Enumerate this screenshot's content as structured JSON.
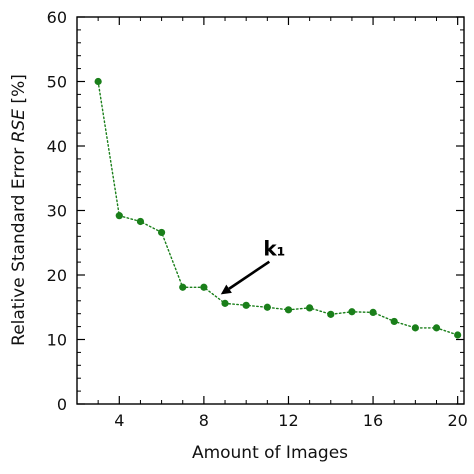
{
  "chart_data": {
    "type": "line",
    "xlabel": "Amount of Images",
    "ylabel_prefix": "Relative Standard Error ",
    "ylabel_italic": "RSE",
    "ylabel_suffix": " [%]",
    "xlim": [
      2,
      20.3
    ],
    "ylim": [
      0,
      60
    ],
    "xticks": [
      4,
      8,
      12,
      16,
      20
    ],
    "yticks": [
      0,
      10,
      20,
      30,
      40,
      50,
      60
    ],
    "x_minor_step": 1,
    "y_minor_step": 2,
    "grid": false,
    "series": [
      {
        "color": "#1a7f1a",
        "line_style": "dotted",
        "x": [
          3,
          4,
          5,
          6,
          7,
          8,
          9,
          10,
          11,
          12,
          13,
          14,
          15,
          16,
          17,
          18,
          19,
          20
        ],
        "y": [
          50.0,
          29.2,
          28.3,
          26.6,
          18.1,
          18.1,
          15.6,
          15.3,
          15.0,
          14.6,
          14.9,
          13.9,
          14.3,
          14.2,
          12.8,
          11.8,
          11.8,
          10.7
        ]
      }
    ],
    "annotations": [
      {
        "text": "k₁",
        "point": [
          8.8,
          17.0
        ],
        "text_at": [
          11.0,
          23.0
        ]
      }
    ]
  }
}
